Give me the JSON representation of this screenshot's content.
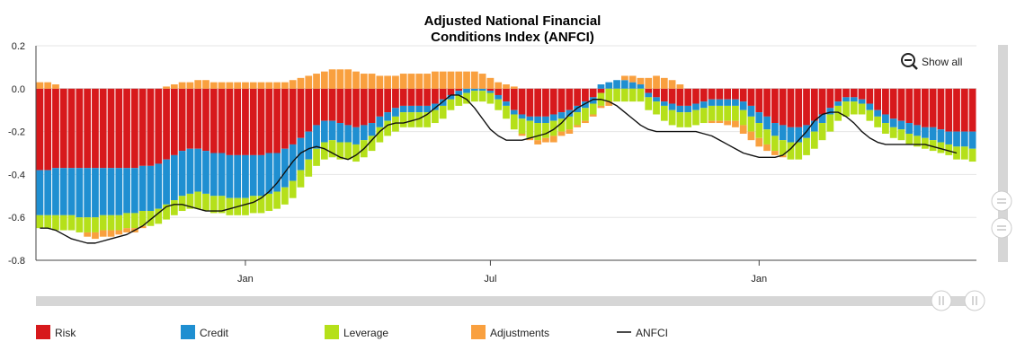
{
  "chart_data": {
    "type": "bar",
    "stacked": true,
    "title": [
      "Adjusted National Financial",
      "Conditions Index (ANFCI)"
    ],
    "ylim": [
      -0.8,
      0.2
    ],
    "yticks": [
      0.2,
      0.0,
      -0.2,
      -0.4,
      -0.6,
      -0.8
    ],
    "ytick_labels": [
      "0.2",
      "0.0",
      "-0.2",
      "-0.4",
      "-0.6",
      "-0.8"
    ],
    "xtick_labels": [
      {
        "label": "Jan",
        "index": 26
      },
      {
        "label": "Jul",
        "index": 57
      },
      {
        "label": "Jan",
        "index": 91
      }
    ],
    "grid": true,
    "legend_position": "bottom",
    "n_points": 119,
    "series": [
      {
        "name": "Risk",
        "color": "#d7191c",
        "kind": "bar",
        "values": [
          -0.38,
          -0.38,
          -0.37,
          -0.37,
          -0.37,
          -0.37,
          -0.37,
          -0.37,
          -0.37,
          -0.37,
          -0.37,
          -0.37,
          -0.37,
          -0.36,
          -0.36,
          -0.35,
          -0.33,
          -0.31,
          -0.29,
          -0.28,
          -0.28,
          -0.29,
          -0.3,
          -0.3,
          -0.31,
          -0.31,
          -0.31,
          -0.31,
          -0.31,
          -0.3,
          -0.3,
          -0.28,
          -0.26,
          -0.23,
          -0.2,
          -0.17,
          -0.15,
          -0.15,
          -0.16,
          -0.17,
          -0.18,
          -0.17,
          -0.16,
          -0.13,
          -0.11,
          -0.09,
          -0.08,
          -0.08,
          -0.08,
          -0.08,
          -0.07,
          -0.05,
          -0.03,
          -0.01,
          0.0,
          0.0,
          0.0,
          -0.01,
          -0.03,
          -0.06,
          -0.1,
          -0.12,
          -0.13,
          -0.13,
          -0.13,
          -0.12,
          -0.11,
          -0.1,
          -0.08,
          -0.06,
          -0.04,
          -0.02,
          0.0,
          0.0,
          0.0,
          0.0,
          0.0,
          -0.02,
          -0.04,
          -0.06,
          -0.07,
          -0.08,
          -0.08,
          -0.07,
          -0.06,
          -0.05,
          -0.05,
          -0.05,
          -0.05,
          -0.06,
          -0.08,
          -0.11,
          -0.13,
          -0.16,
          -0.17,
          -0.18,
          -0.18,
          -0.17,
          -0.15,
          -0.12,
          -0.09,
          -0.06,
          -0.04,
          -0.04,
          -0.05,
          -0.07,
          -0.1,
          -0.12,
          -0.14,
          -0.15,
          -0.16,
          -0.17,
          -0.18,
          -0.18,
          -0.19,
          -0.2,
          -0.2,
          -0.2,
          -0.2
        ]
      },
      {
        "name": "Credit",
        "color": "#1f8fd1",
        "kind": "bar",
        "values": [
          -0.21,
          -0.21,
          -0.22,
          -0.22,
          -0.22,
          -0.23,
          -0.23,
          -0.23,
          -0.22,
          -0.22,
          -0.22,
          -0.21,
          -0.21,
          -0.21,
          -0.21,
          -0.21,
          -0.21,
          -0.21,
          -0.21,
          -0.21,
          -0.2,
          -0.2,
          -0.2,
          -0.2,
          -0.2,
          -0.2,
          -0.2,
          -0.19,
          -0.19,
          -0.19,
          -0.18,
          -0.18,
          -0.17,
          -0.15,
          -0.13,
          -0.11,
          -0.1,
          -0.09,
          -0.09,
          -0.08,
          -0.08,
          -0.07,
          -0.06,
          -0.05,
          -0.04,
          -0.04,
          -0.03,
          -0.03,
          -0.03,
          -0.03,
          -0.03,
          -0.03,
          -0.02,
          -0.02,
          -0.02,
          -0.01,
          -0.01,
          -0.01,
          -0.02,
          -0.02,
          -0.02,
          -0.02,
          -0.02,
          -0.03,
          -0.03,
          -0.03,
          -0.03,
          -0.03,
          -0.03,
          -0.03,
          -0.03,
          0.02,
          0.03,
          0.04,
          0.04,
          0.03,
          0.02,
          -0.02,
          -0.02,
          -0.02,
          -0.03,
          -0.03,
          -0.03,
          -0.03,
          -0.03,
          -0.03,
          -0.03,
          -0.03,
          -0.03,
          -0.04,
          -0.05,
          -0.05,
          -0.06,
          -0.06,
          -0.07,
          -0.07,
          -0.07,
          -0.06,
          -0.05,
          -0.04,
          -0.03,
          -0.02,
          -0.02,
          -0.02,
          -0.02,
          -0.03,
          -0.03,
          -0.04,
          -0.04,
          -0.04,
          -0.05,
          -0.05,
          -0.05,
          -0.06,
          -0.06,
          -0.06,
          -0.07,
          -0.07,
          -0.08
        ]
      },
      {
        "name": "Leverage",
        "color": "#b5e01a",
        "kind": "bar",
        "values": [
          -0.06,
          -0.06,
          -0.07,
          -0.07,
          -0.07,
          -0.07,
          -0.07,
          -0.07,
          -0.07,
          -0.07,
          -0.07,
          -0.07,
          -0.07,
          -0.07,
          -0.07,
          -0.07,
          -0.07,
          -0.07,
          -0.07,
          -0.07,
          -0.08,
          -0.08,
          -0.08,
          -0.08,
          -0.08,
          -0.08,
          -0.08,
          -0.08,
          -0.08,
          -0.08,
          -0.08,
          -0.08,
          -0.08,
          -0.08,
          -0.08,
          -0.08,
          -0.08,
          -0.08,
          -0.08,
          -0.08,
          -0.08,
          -0.08,
          -0.07,
          -0.07,
          -0.07,
          -0.07,
          -0.07,
          -0.07,
          -0.07,
          -0.07,
          -0.06,
          -0.06,
          -0.05,
          -0.05,
          -0.05,
          -0.05,
          -0.05,
          -0.05,
          -0.05,
          -0.06,
          -0.07,
          -0.07,
          -0.08,
          -0.08,
          -0.07,
          -0.07,
          -0.06,
          -0.06,
          -0.06,
          -0.06,
          -0.05,
          -0.06,
          -0.06,
          -0.06,
          -0.06,
          -0.06,
          -0.06,
          -0.06,
          -0.06,
          -0.07,
          -0.07,
          -0.07,
          -0.07,
          -0.07,
          -0.07,
          -0.07,
          -0.07,
          -0.07,
          -0.07,
          -0.07,
          -0.07,
          -0.07,
          -0.07,
          -0.07,
          -0.07,
          -0.08,
          -0.08,
          -0.08,
          -0.08,
          -0.08,
          -0.08,
          -0.07,
          -0.07,
          -0.06,
          -0.05,
          -0.05,
          -0.05,
          -0.05,
          -0.05,
          -0.05,
          -0.05,
          -0.05,
          -0.05,
          -0.05,
          -0.05,
          -0.05,
          -0.06,
          -0.06,
          -0.06
        ]
      },
      {
        "name": "Adjustments",
        "color": "#f9a03f",
        "kind": "bar",
        "values": [
          0.03,
          0.03,
          0.02,
          0.0,
          0.0,
          0.0,
          -0.02,
          -0.03,
          -0.03,
          -0.03,
          -0.02,
          -0.02,
          -0.02,
          -0.01,
          0.0,
          0.0,
          0.01,
          0.02,
          0.03,
          0.03,
          0.04,
          0.04,
          0.03,
          0.03,
          0.03,
          0.03,
          0.03,
          0.03,
          0.03,
          0.03,
          0.03,
          0.03,
          0.04,
          0.05,
          0.06,
          0.07,
          0.08,
          0.09,
          0.09,
          0.09,
          0.08,
          0.07,
          0.07,
          0.06,
          0.06,
          0.06,
          0.07,
          0.07,
          0.07,
          0.07,
          0.08,
          0.08,
          0.08,
          0.08,
          0.08,
          0.08,
          0.07,
          0.05,
          0.03,
          0.02,
          0.01,
          -0.01,
          -0.01,
          -0.02,
          -0.02,
          -0.03,
          -0.02,
          -0.02,
          -0.01,
          -0.01,
          -0.01,
          -0.01,
          -0.02,
          0.0,
          0.02,
          0.03,
          0.03,
          0.05,
          0.06,
          0.05,
          0.04,
          0.02,
          0.0,
          0.0,
          0.0,
          -0.01,
          -0.01,
          -0.02,
          -0.03,
          -0.04,
          -0.04,
          -0.04,
          -0.03,
          -0.02,
          -0.01,
          0.0,
          0.0,
          0.0,
          0.0,
          0.0,
          0.0,
          0.0,
          0.0,
          0.0,
          0.0,
          0.0,
          0.0,
          0.0,
          0.0,
          0.0,
          0.0,
          0.0,
          0.0,
          0.0,
          0.0,
          0.0,
          0.0,
          0.0,
          0.0
        ]
      },
      {
        "name": "ANFCI",
        "color": "#111111",
        "kind": "line",
        "values": [
          -0.65,
          -0.65,
          -0.66,
          -0.68,
          -0.7,
          -0.71,
          -0.72,
          -0.72,
          -0.71,
          -0.7,
          -0.69,
          -0.68,
          -0.66,
          -0.64,
          -0.61,
          -0.58,
          -0.55,
          -0.54,
          -0.54,
          -0.55,
          -0.56,
          -0.57,
          -0.57,
          -0.57,
          -0.56,
          -0.55,
          -0.54,
          -0.53,
          -0.51,
          -0.48,
          -0.44,
          -0.39,
          -0.34,
          -0.3,
          -0.28,
          -0.27,
          -0.28,
          -0.3,
          -0.32,
          -0.33,
          -0.31,
          -0.28,
          -0.24,
          -0.2,
          -0.17,
          -0.16,
          -0.16,
          -0.15,
          -0.14,
          -0.12,
          -0.09,
          -0.06,
          -0.03,
          -0.03,
          -0.05,
          -0.09,
          -0.14,
          -0.19,
          -0.22,
          -0.24,
          -0.24,
          -0.24,
          -0.23,
          -0.22,
          -0.21,
          -0.19,
          -0.16,
          -0.12,
          -0.09,
          -0.07,
          -0.05,
          -0.05,
          -0.06,
          -0.08,
          -0.11,
          -0.14,
          -0.17,
          -0.19,
          -0.2,
          -0.2,
          -0.2,
          -0.2,
          -0.2,
          -0.2,
          -0.21,
          -0.22,
          -0.24,
          -0.26,
          -0.28,
          -0.3,
          -0.31,
          -0.32,
          -0.32,
          -0.32,
          -0.31,
          -0.28,
          -0.24,
          -0.2,
          -0.15,
          -0.12,
          -0.11,
          -0.11,
          -0.13,
          -0.16,
          -0.2,
          -0.23,
          -0.25,
          -0.26,
          -0.26,
          -0.26,
          -0.26,
          -0.26,
          -0.26,
          -0.27,
          -0.28,
          -0.29,
          -0.3
        ]
      }
    ]
  },
  "ui": {
    "show_all_label": "Show all"
  }
}
